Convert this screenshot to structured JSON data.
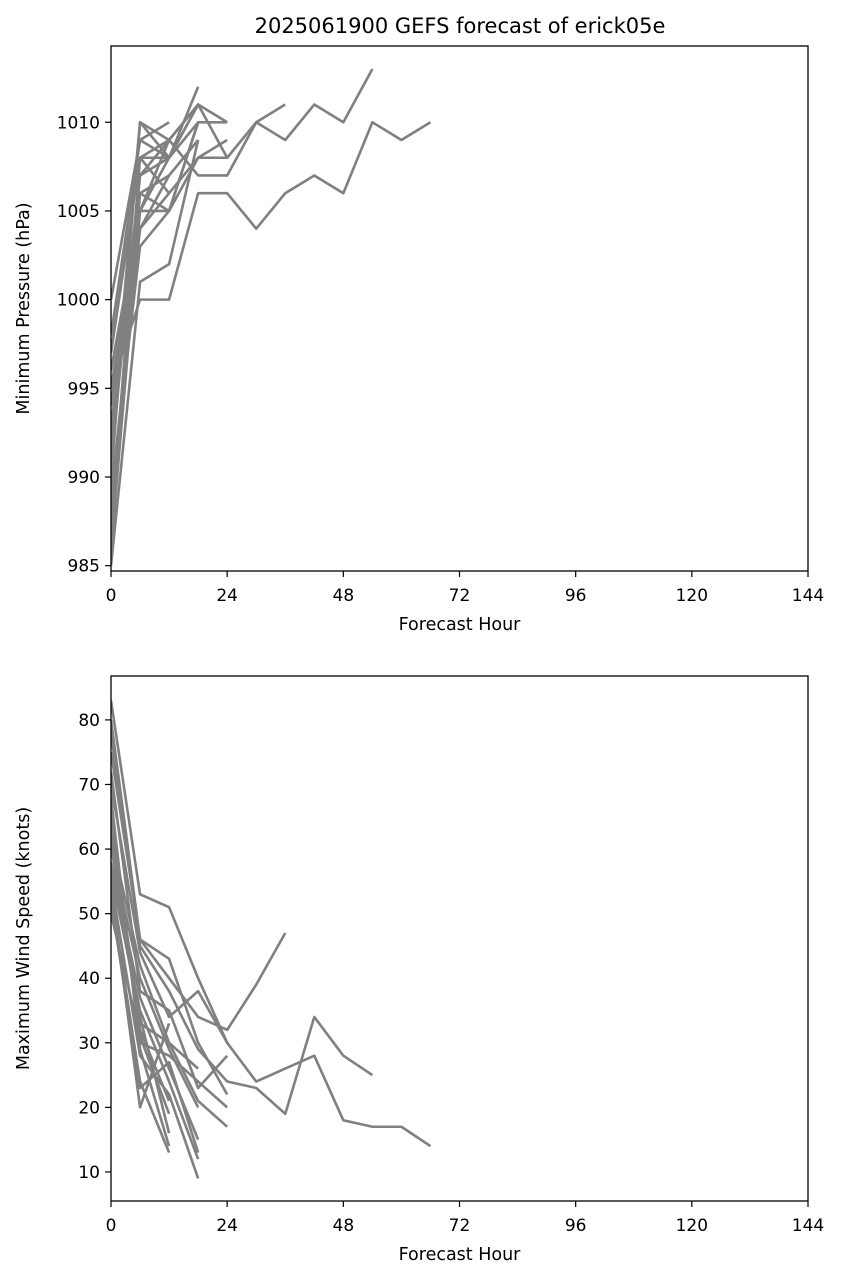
{
  "figure": {
    "title": "2025061900 GEFS forecast of erick05e"
  },
  "chart_data": [
    {
      "type": "line",
      "title": "2025061900 GEFS forecast of erick05e",
      "xlabel": "Forecast Hour",
      "ylabel": "Minimum Pressure (hPa)",
      "xlim": [
        0,
        144
      ],
      "ylim": [
        984.7,
        1014.3
      ],
      "xticks": [
        0,
        24,
        48,
        72,
        96,
        120,
        144
      ],
      "yticks": [
        985,
        990,
        995,
        1000,
        1005,
        1010
      ],
      "line_color": "#808080",
      "grid": false,
      "legend": false,
      "series": [
        {
          "x": [
            0,
            6,
            12,
            18,
            24,
            30,
            36
          ],
          "y": [
            990,
            1010,
            1009,
            1007,
            1007,
            1010,
            1011
          ]
        },
        {
          "x": [
            0,
            6,
            12,
            18,
            24,
            30,
            36,
            42,
            48,
            54
          ],
          "y": [
            992,
            1010,
            1008,
            1011,
            1008,
            1010,
            1009,
            1011,
            1010,
            1013
          ]
        },
        {
          "x": [
            0,
            6,
            12,
            18,
            24,
            30,
            36,
            42,
            48,
            54,
            60,
            66
          ],
          "y": [
            995,
            1000,
            1000,
            1006,
            1006,
            1004,
            1006,
            1007,
            1006,
            1010,
            1009,
            1010
          ]
        },
        {
          "x": [
            0,
            6,
            12,
            18
          ],
          "y": [
            985,
            1001,
            1002,
            1009
          ]
        },
        {
          "x": [
            0,
            6,
            12,
            18
          ],
          "y": [
            989,
            1003,
            1005,
            1010
          ]
        },
        {
          "x": [
            0,
            6,
            12,
            18,
            24
          ],
          "y": [
            996,
            1005,
            1005,
            1010,
            1010
          ]
        },
        {
          "x": [
            0,
            6,
            12,
            18,
            24
          ],
          "y": [
            993,
            1004,
            1006,
            1008,
            1008
          ]
        },
        {
          "x": [
            0,
            6,
            12,
            18,
            24
          ],
          "y": [
            994,
            1006,
            1005,
            1008,
            1009
          ]
        },
        {
          "x": [
            0,
            6,
            12,
            18
          ],
          "y": [
            991,
            1007,
            1008,
            1012
          ]
        },
        {
          "x": [
            0,
            6,
            12,
            18
          ],
          "y": [
            997,
            1008,
            1009,
            1011
          ]
        },
        {
          "x": [
            0,
            6,
            12,
            18,
            24
          ],
          "y": [
            998,
            1009,
            1008,
            1011,
            1010
          ]
        },
        {
          "x": [
            0,
            6,
            12
          ],
          "y": [
            1000,
            1009,
            1010
          ]
        },
        {
          "x": [
            0,
            6,
            12
          ],
          "y": [
            987,
            1008,
            1006
          ]
        },
        {
          "x": [
            0,
            6,
            12
          ],
          "y": [
            988,
            1006,
            1007
          ]
        },
        {
          "x": [
            0,
            6,
            12,
            18
          ],
          "y": [
            995,
            1005,
            1008,
            1010
          ]
        },
        {
          "x": [
            0,
            6,
            12,
            18
          ],
          "y": [
            992,
            1007,
            1009,
            1011
          ]
        },
        {
          "x": [
            0,
            6,
            12,
            18
          ],
          "y": [
            989,
            1004,
            1007,
            1009
          ]
        },
        {
          "x": [
            0,
            6,
            12
          ],
          "y": [
            997,
            1008,
            1008
          ]
        },
        {
          "x": [
            0,
            6,
            12
          ],
          "y": [
            986,
            1005,
            1009
          ]
        }
      ]
    },
    {
      "type": "line",
      "title": "",
      "xlabel": "Forecast Hour",
      "ylabel": "Maximum Wind Speed (knots)",
      "xlim": [
        0,
        144
      ],
      "ylim": [
        5.5,
        86.8
      ],
      "xticks": [
        0,
        24,
        48,
        72,
        96,
        120,
        144
      ],
      "yticks": [
        10,
        20,
        30,
        40,
        50,
        60,
        70,
        80
      ],
      "line_color": "#808080",
      "grid": false,
      "legend": false,
      "series": [
        {
          "x": [
            0,
            6,
            12,
            18,
            24,
            30,
            36
          ],
          "y": [
            80,
            46,
            40,
            34,
            32,
            39,
            47
          ]
        },
        {
          "x": [
            0,
            6,
            12,
            18,
            24,
            30,
            36,
            42,
            48,
            54
          ],
          "y": [
            78,
            45,
            38,
            29,
            24,
            23,
            19,
            34,
            28,
            25
          ]
        },
        {
          "x": [
            0,
            6,
            12,
            18,
            24,
            30,
            36,
            42,
            48,
            54,
            60,
            66
          ],
          "y": [
            83,
            53,
            51,
            40,
            30,
            24,
            26,
            28,
            18,
            17,
            17,
            14
          ]
        },
        {
          "x": [
            0,
            6,
            12,
            18,
            24
          ],
          "y": [
            75,
            46,
            43,
            30,
            22
          ]
        },
        {
          "x": [
            0,
            6,
            12,
            18,
            24
          ],
          "y": [
            70,
            44,
            34,
            38,
            30
          ]
        },
        {
          "x": [
            0,
            6,
            12,
            18,
            24
          ],
          "y": [
            72,
            38,
            35,
            23,
            28
          ]
        },
        {
          "x": [
            0,
            6,
            12,
            18,
            24
          ],
          "y": [
            66,
            30,
            28,
            24,
            20
          ]
        },
        {
          "x": [
            0,
            6,
            12,
            18,
            24
          ],
          "y": [
            64,
            33,
            30,
            21,
            17
          ]
        },
        {
          "x": [
            0,
            6,
            12,
            18
          ],
          "y": [
            60,
            40,
            29,
            20
          ]
        },
        {
          "x": [
            0,
            6,
            12,
            18
          ],
          "y": [
            62,
            42,
            30,
            26
          ]
        },
        {
          "x": [
            0,
            6,
            12,
            18
          ],
          "y": [
            58,
            37,
            26,
            15
          ]
        },
        {
          "x": [
            0,
            6,
            12,
            18
          ],
          "y": [
            56,
            35,
            24,
            12
          ]
        },
        {
          "x": [
            0,
            6,
            12,
            18
          ],
          "y": [
            55,
            28,
            22,
            9
          ]
        },
        {
          "x": [
            0,
            6,
            12,
            18
          ],
          "y": [
            52,
            23,
            27,
            13
          ]
        },
        {
          "x": [
            0,
            6,
            12
          ],
          "y": [
            54,
            20,
            33
          ]
        },
        {
          "x": [
            0,
            6,
            12
          ],
          "y": [
            50,
            31,
            19
          ]
        },
        {
          "x": [
            0,
            6,
            12
          ],
          "y": [
            53,
            24,
            13
          ]
        },
        {
          "x": [
            0,
            6,
            12
          ],
          "y": [
            57,
            34,
            16
          ]
        },
        {
          "x": [
            0,
            6,
            12
          ],
          "y": [
            61,
            32,
            21
          ]
        },
        {
          "x": [
            0,
            6,
            12
          ],
          "y": [
            68,
            29,
            14
          ]
        }
      ]
    }
  ]
}
